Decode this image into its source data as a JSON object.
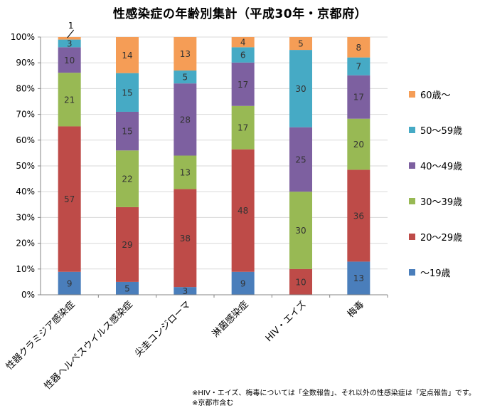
{
  "title": "性感染症の年齢別集計（平成30年・京都府）",
  "footnotes": [
    "※HIV・エイズ、梅毒については「全数報告」、それ以外の性感染症は「定点報告」です。",
    "※京都市含む"
  ],
  "colors": {
    "age_under19": "#4a7ebb",
    "age_20_29": "#be4b48",
    "age_30_39": "#98b954",
    "age_40_49": "#7d60a0",
    "age_50_59": "#46aac5",
    "age_60_plus": "#f59d56",
    "grid": "#d9d9d9",
    "axis": "#868686"
  },
  "chart_data": {
    "type": "bar",
    "stacked": true,
    "percent": true,
    "title": "性感染症の年齢別集計（平成30年・京都府）",
    "categories": [
      "性器クラミジア感染症",
      "性器ヘルペスウイルス感染症",
      "尖圭コンジローマ",
      "淋菌感染症",
      "HIV・エイズ",
      "梅毒"
    ],
    "yticks": [
      "0%",
      "10%",
      "20%",
      "30%",
      "40%",
      "50%",
      "60%",
      "70%",
      "80%",
      "90%",
      "100%"
    ],
    "ylim": [
      0,
      100
    ],
    "grid": true,
    "legend_position": "right",
    "series": [
      {
        "name": "～19歳",
        "color": "#4a7ebb",
        "values": [
          9,
          5,
          3,
          9,
          0,
          13
        ]
      },
      {
        "name": "20～29歳",
        "color": "#be4b48",
        "values": [
          57,
          29,
          38,
          48,
          10,
          36
        ]
      },
      {
        "name": "30～39歳",
        "color": "#98b954",
        "values": [
          21,
          22,
          13,
          17,
          30,
          20
        ]
      },
      {
        "name": "40～49歳",
        "color": "#7d60a0",
        "values": [
          10,
          15,
          28,
          17,
          25,
          17
        ]
      },
      {
        "name": "50～59歳",
        "color": "#46aac5",
        "values": [
          3,
          15,
          5,
          6,
          30,
          7
        ]
      },
      {
        "name": "60歳～",
        "color": "#f59d56",
        "values": [
          1,
          14,
          13,
          4,
          5,
          8
        ]
      }
    ]
  }
}
